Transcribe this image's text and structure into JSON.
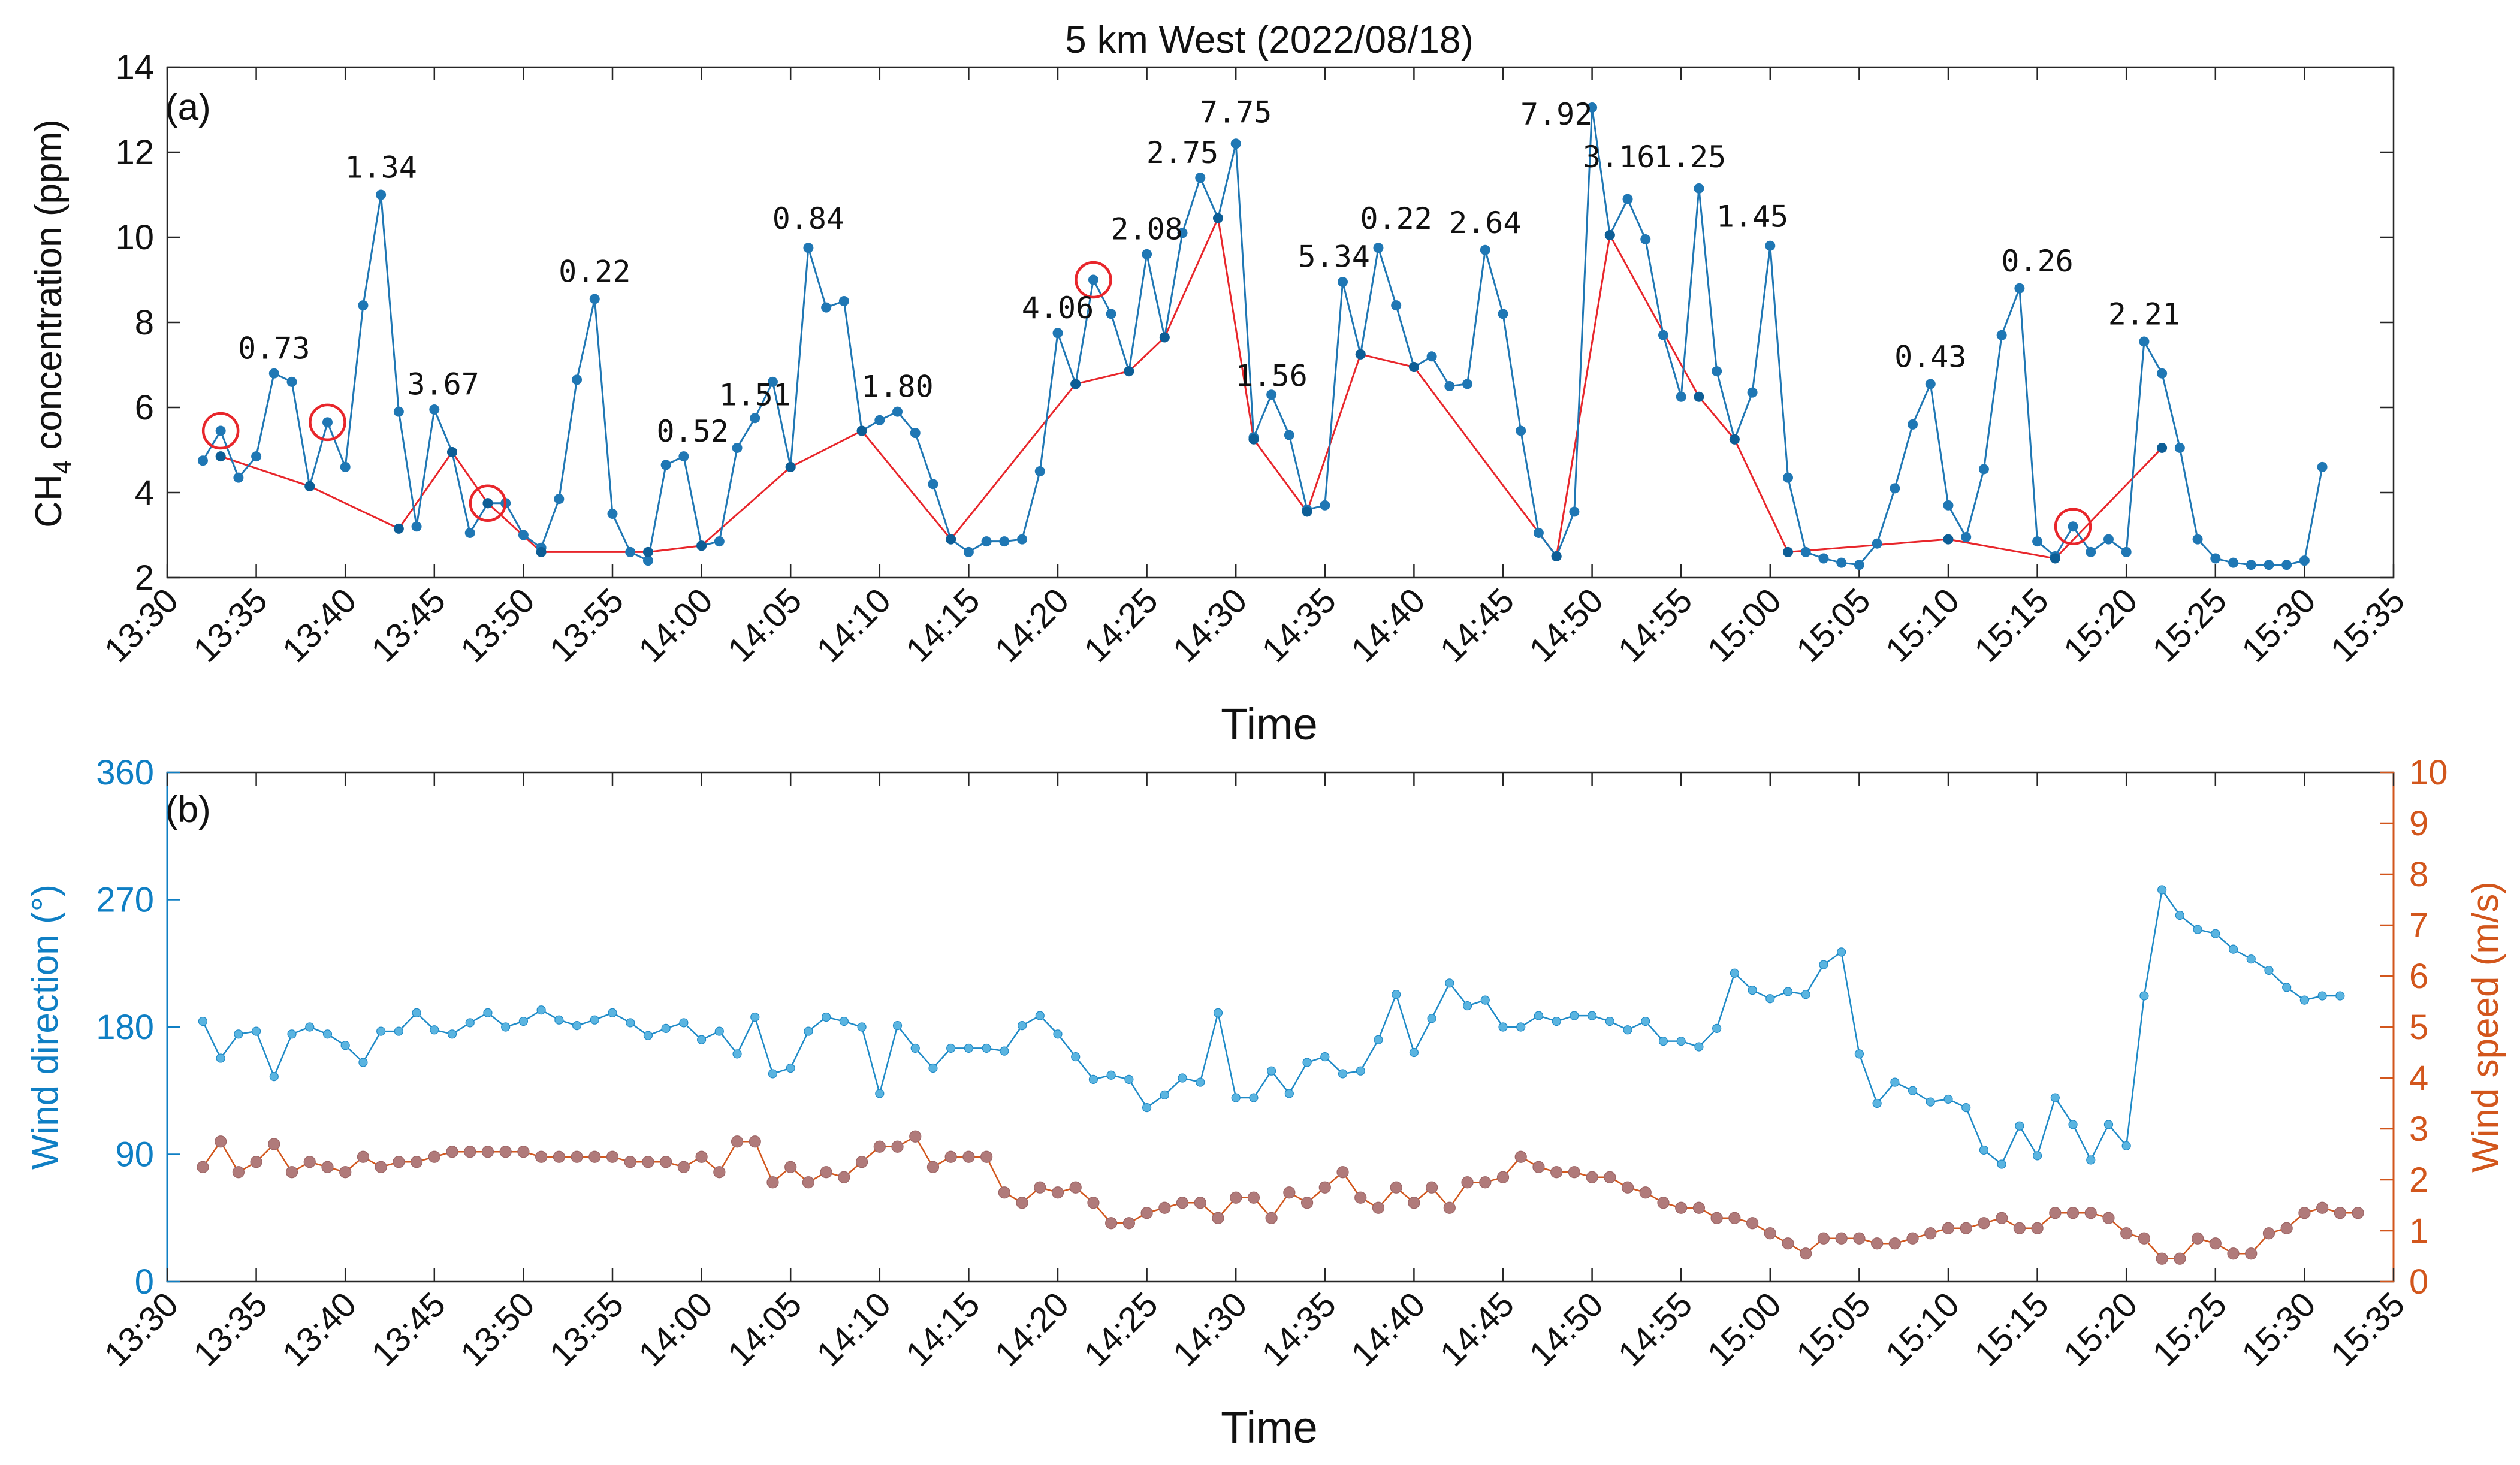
{
  "figure": {
    "title": "5 km West (2022/08/18)",
    "panel_a_label": "(a)",
    "panel_b_label": "(b)"
  },
  "chart_data": [
    {
      "type": "line",
      "panel": "(a)",
      "xlabel": "Time",
      "ylabel_main": "CH",
      "ylabel_sub": "4",
      "ylabel_rest": " concentration (ppm)",
      "xlim": [
        "13:30",
        "15:35"
      ],
      "ylim": [
        2,
        14
      ],
      "x_ticks": [
        "13:30",
        "13:35",
        "13:40",
        "13:45",
        "13:50",
        "13:55",
        "14:00",
        "14:05",
        "14:10",
        "14:15",
        "14:20",
        "14:25",
        "14:30",
        "14:35",
        "14:40",
        "14:45",
        "14:50",
        "14:55",
        "15:00",
        "15:05",
        "15:10",
        "15:15",
        "15:20",
        "15:25",
        "15:30",
        "15:35"
      ],
      "y_ticks": [
        2,
        4,
        6,
        8,
        10,
        12,
        14
      ],
      "grid": false,
      "colors": {
        "series": "#1f77b4",
        "baseline": "#e8262b",
        "circle": "#e8262b"
      },
      "series": [
        {
          "role": "measured",
          "x": [
            "13:32",
            "13:33",
            "13:34",
            "13:35",
            "13:36",
            "13:37",
            "13:38",
            "13:39",
            "13:40",
            "13:41",
            "13:42",
            "13:43",
            "13:44",
            "13:45",
            "13:46",
            "13:47",
            "13:48",
            "13:49",
            "13:50",
            "13:51",
            "13:52",
            "13:53",
            "13:54",
            "13:55",
            "13:56",
            "13:57",
            "13:58",
            "13:59",
            "14:00",
            "14:01",
            "14:02",
            "14:03",
            "14:04",
            "14:05",
            "14:06",
            "14:07",
            "14:08",
            "14:09",
            "14:10",
            "14:11",
            "14:12",
            "14:13",
            "14:14",
            "14:15",
            "14:16",
            "14:17",
            "14:18",
            "14:19",
            "14:20",
            "14:21",
            "14:22",
            "14:23",
            "14:24",
            "14:25",
            "14:26",
            "14:27",
            "14:28",
            "14:29",
            "14:30",
            "14:31",
            "14:32",
            "14:33",
            "14:34",
            "14:35",
            "14:36",
            "14:37",
            "14:38",
            "14:39",
            "14:40",
            "14:41",
            "14:42",
            "14:43",
            "14:44",
            "14:45",
            "14:46",
            "14:47",
            "14:48",
            "14:49",
            "14:50",
            "14:51",
            "14:52",
            "14:53",
            "14:54",
            "14:55",
            "14:56",
            "14:57",
            "14:58",
            "14:59",
            "15:00",
            "15:01",
            "15:02",
            "15:03",
            "15:04",
            "15:05",
            "15:06",
            "15:07",
            "15:08",
            "15:09",
            "15:10",
            "15:11",
            "15:12",
            "15:13",
            "15:14",
            "15:15",
            "15:16",
            "15:17",
            "15:18",
            "15:19",
            "15:20",
            "15:21",
            "15:22",
            "15:23",
            "15:24",
            "15:25",
            "15:26",
            "15:27",
            "15:28",
            "15:29",
            "15:30",
            "15:31"
          ],
          "y": [
            4.75,
            5.45,
            4.35,
            4.85,
            6.8,
            6.6,
            4.15,
            5.65,
            4.6,
            8.4,
            11.0,
            5.9,
            3.2,
            5.95,
            4.95,
            3.05,
            3.75,
            3.75,
            3.0,
            2.7,
            3.85,
            6.65,
            8.55,
            3.5,
            2.6,
            2.4,
            4.65,
            4.85,
            2.75,
            2.85,
            5.05,
            5.75,
            6.6,
            4.6,
            9.75,
            8.35,
            8.5,
            5.45,
            5.7,
            5.9,
            5.4,
            4.2,
            2.9,
            2.6,
            2.85,
            2.85,
            2.9,
            4.5,
            7.75,
            6.55,
            9.0,
            8.2,
            6.85,
            9.6,
            7.65,
            10.1,
            11.4,
            10.45,
            12.2,
            5.3,
            6.3,
            5.35,
            3.6,
            3.7,
            8.95,
            7.25,
            9.75,
            8.4,
            6.95,
            7.2,
            6.5,
            6.55,
            9.7,
            8.2,
            5.45,
            3.05,
            2.5,
            3.55,
            13.05,
            10.05,
            10.9,
            9.95,
            7.7,
            6.25,
            11.15,
            6.85,
            5.25,
            6.35,
            9.8,
            4.35,
            2.6,
            2.45,
            2.35,
            2.3,
            2.8,
            4.1,
            5.6,
            6.55,
            3.7,
            2.95,
            4.55,
            7.7,
            8.8,
            2.85,
            2.5,
            3.2,
            2.6,
            2.9,
            2.6,
            7.55,
            6.8,
            5.05,
            2.9,
            2.45,
            2.35,
            2.3,
            2.3,
            2.3,
            2.4,
            4.6
          ]
        },
        {
          "role": "baseline",
          "x": [
            "13:33",
            "13:38",
            "13:43",
            "13:46",
            "13:48",
            "13:51",
            "13:57",
            "14:00",
            "14:05",
            "14:09",
            "14:14",
            "14:21",
            "14:24",
            "14:26",
            "14:29",
            "14:31",
            "14:34",
            "14:37",
            "14:40",
            "14:48",
            "14:51",
            "14:56",
            "14:58",
            "15:01",
            "15:10",
            "15:16",
            "15:22"
          ],
          "y": [
            4.85,
            4.15,
            3.15,
            4.95,
            3.75,
            2.6,
            2.6,
            2.75,
            4.6,
            5.45,
            2.9,
            6.55,
            6.85,
            7.65,
            10.45,
            5.25,
            3.55,
            7.25,
            6.95,
            2.5,
            10.05,
            6.25,
            5.25,
            2.6,
            2.9,
            2.45,
            5.05
          ]
        }
      ],
      "highlight_circles_x": [
        "13:33",
        "13:39",
        "13:48",
        "14:22",
        "15:17"
      ],
      "annotations": [
        {
          "x": "13:36",
          "y": 7.15,
          "text": "0.73"
        },
        {
          "x": "13:42",
          "y": 11.4,
          "text": "1.34"
        },
        {
          "x": "13:45.5",
          "y": 6.3,
          "text": "3.67"
        },
        {
          "x": "13:54",
          "y": 8.95,
          "text": "0.22"
        },
        {
          "x": "13:59.5",
          "y": 5.2,
          "text": "0.52"
        },
        {
          "x": "14:03",
          "y": 6.05,
          "text": "1.51"
        },
        {
          "x": "14:06",
          "y": 10.2,
          "text": "0.84"
        },
        {
          "x": "14:11",
          "y": 6.25,
          "text": "1.80"
        },
        {
          "x": "14:20",
          "y": 8.1,
          "text": "4.06"
        },
        {
          "x": "14:25",
          "y": 9.95,
          "text": "2.08"
        },
        {
          "x": "14:27",
          "y": 11.75,
          "text": "2.75"
        },
        {
          "x": "14:30",
          "y": 12.7,
          "text": "7.75"
        },
        {
          "x": "14:32",
          "y": 6.5,
          "text": "1.56"
        },
        {
          "x": "14:35.5",
          "y": 9.3,
          "text": "5.34"
        },
        {
          "x": "14:39",
          "y": 10.2,
          "text": "0.22"
        },
        {
          "x": "14:44",
          "y": 10.1,
          "text": "2.64"
        },
        {
          "x": "14:48",
          "y": 12.65,
          "text": "7.92"
        },
        {
          "x": "14:51.5",
          "y": 11.65,
          "text": "3.16"
        },
        {
          "x": "14:55.5",
          "y": 11.65,
          "text": "1.25"
        },
        {
          "x": "14:59",
          "y": 10.25,
          "text": "1.45"
        },
        {
          "x": "15:09",
          "y": 6.95,
          "text": "0.43"
        },
        {
          "x": "15:15",
          "y": 9.2,
          "text": "0.26"
        },
        {
          "x": "15:21",
          "y": 7.95,
          "text": "2.21"
        }
      ]
    },
    {
      "type": "line",
      "panel": "(b)",
      "xlabel": "Time",
      "ylabel_left": "Wind direction (°)",
      "ylabel_right": "Wind speed (m/s)",
      "xlim": [
        "13:30",
        "15:35"
      ],
      "ylim_left": [
        0,
        360
      ],
      "ylim_right": [
        0,
        10
      ],
      "x_ticks": [
        "13:30",
        "13:35",
        "13:40",
        "13:45",
        "13:50",
        "13:55",
        "14:00",
        "14:05",
        "14:10",
        "14:15",
        "14:20",
        "14:25",
        "14:30",
        "14:35",
        "14:40",
        "14:45",
        "14:50",
        "14:55",
        "15:00",
        "15:05",
        "15:10",
        "15:15",
        "15:20",
        "15:25",
        "15:30",
        "15:35"
      ],
      "y_ticks_left": [
        0,
        90,
        180,
        270,
        360
      ],
      "y_ticks_right": [
        0,
        1,
        2,
        3,
        4,
        5,
        6,
        7,
        8,
        9,
        10
      ],
      "grid": false,
      "colors": {
        "direction": "#1e8ac7",
        "speed_line": "#d2561c",
        "speed_marker": "#b07a7a",
        "left_axis": "#0f7fc4",
        "right_axis": "#d2561c"
      },
      "series": [
        {
          "role": "wind_direction",
          "axis": "left",
          "x_start": "13:32",
          "x_step_seconds": 60,
          "y": [
            184,
            158,
            175,
            177,
            145,
            175,
            180,
            175,
            167,
            155,
            177,
            177,
            190,
            178,
            175,
            183,
            190,
            180,
            184,
            192,
            185,
            181,
            185,
            190,
            183,
            174,
            179,
            183,
            171,
            177,
            161,
            187,
            147,
            151,
            177,
            187,
            184,
            180,
            133,
            181,
            165,
            151,
            165,
            165,
            165,
            163,
            181,
            188,
            175,
            159,
            143,
            146,
            143,
            123,
            132,
            144,
            141,
            190,
            130,
            130,
            149,
            133,
            155,
            159,
            147,
            149,
            171,
            203,
            162,
            186,
            211,
            195,
            199,
            180,
            180,
            188,
            184,
            188,
            188,
            184,
            178,
            184,
            170,
            170,
            166,
            179,
            218,
            206,
            200,
            205,
            203,
            224,
            233,
            161,
            126,
            141,
            135,
            127,
            129,
            123,
            93,
            83,
            110,
            89,
            130,
            111,
            86,
            111,
            96,
            202,
            277,
            259,
            249,
            246,
            235,
            228,
            220,
            208,
            199,
            202,
            202
          ]
        },
        {
          "role": "wind_speed",
          "axis": "right",
          "x_start": "13:32",
          "x_step_seconds": 60,
          "y": [
            2.25,
            2.75,
            2.15,
            2.35,
            2.7,
            2.15,
            2.35,
            2.25,
            2.15,
            2.45,
            2.25,
            2.35,
            2.35,
            2.45,
            2.55,
            2.55,
            2.55,
            2.55,
            2.55,
            2.45,
            2.45,
            2.45,
            2.45,
            2.45,
            2.35,
            2.35,
            2.35,
            2.25,
            2.45,
            2.15,
            2.75,
            2.75,
            1.95,
            2.25,
            1.95,
            2.15,
            2.05,
            2.35,
            2.65,
            2.65,
            2.85,
            2.25,
            2.45,
            2.45,
            2.45,
            1.75,
            1.55,
            1.85,
            1.75,
            1.85,
            1.55,
            1.15,
            1.15,
            1.35,
            1.45,
            1.55,
            1.55,
            1.25,
            1.65,
            1.65,
            1.25,
            1.75,
            1.55,
            1.85,
            2.15,
            1.65,
            1.45,
            1.85,
            1.55,
            1.85,
            1.45,
            1.95,
            1.95,
            2.05,
            2.45,
            2.25,
            2.15,
            2.15,
            2.05,
            2.05,
            1.85,
            1.75,
            1.55,
            1.45,
            1.45,
            1.25,
            1.25,
            1.15,
            0.95,
            0.75,
            0.55,
            0.85,
            0.85,
            0.85,
            0.75,
            0.75,
            0.85,
            0.95,
            1.05,
            1.05,
            1.15,
            1.25,
            1.05,
            1.05,
            1.35,
            1.35,
            1.35,
            1.25,
            0.95,
            0.85,
            0.45,
            0.45,
            0.85,
            0.75,
            0.55,
            0.55,
            0.95,
            1.05,
            1.35,
            1.45,
            1.35,
            1.35
          ]
        }
      ]
    }
  ]
}
